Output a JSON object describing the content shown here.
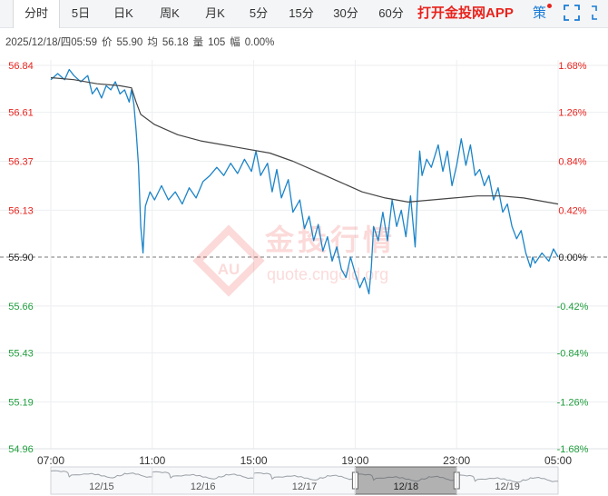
{
  "tabs": [
    {
      "label": "分时",
      "active": true
    },
    {
      "label": "5日"
    },
    {
      "label": "日K"
    },
    {
      "label": "周K"
    },
    {
      "label": "月K"
    },
    {
      "label": "5分"
    },
    {
      "label": "15分"
    },
    {
      "label": "30分"
    },
    {
      "label": "60分"
    }
  ],
  "promo": "打开金投网APP",
  "strategy": "策",
  "info": {
    "datetime": "2025/12/18/四05:59",
    "price_label": "价",
    "price": "55.90",
    "avg_label": "均",
    "avg": "56.18",
    "volume_label": "量",
    "volume": "105",
    "change_label": "幅",
    "change": "0.00%"
  },
  "watermark": {
    "brand": "金投行情",
    "logo_text": "AU",
    "site": "quote.cngold.org"
  },
  "colors": {
    "up": "#e8231d",
    "down": "#1e9e3c",
    "price_line": "#1b84c8",
    "avg_line": "#444444",
    "baseline": "#777777",
    "accent": "#1a7cd6"
  },
  "icons": [
    "fullscreen-icon",
    "expand-icon"
  ],
  "chart_data": {
    "type": "line",
    "base_price": 55.9,
    "y_ticks_left": [
      "56.84",
      "56.61",
      "56.37",
      "56.13",
      "55.90",
      "55.66",
      "55.43",
      "55.19",
      "54.96"
    ],
    "y_ticks_right": [
      "1.68%",
      "1.26%",
      "0.84%",
      "0.42%",
      "0.00%",
      "-0.42%",
      "-0.84%",
      "-1.26%",
      "-1.68%"
    ],
    "ylim": [
      54.96,
      56.84
    ],
    "x_ticks": [
      "07:00",
      "11:00",
      "15:00",
      "19:00",
      "23:00",
      "05:00"
    ],
    "x_range_hours": [
      0,
      22
    ],
    "series": [
      {
        "key": "price",
        "points": [
          [
            0,
            56.77
          ],
          [
            0.3,
            56.8
          ],
          [
            0.6,
            56.77
          ],
          [
            0.8,
            56.82
          ],
          [
            1.0,
            56.79
          ],
          [
            1.3,
            56.76
          ],
          [
            1.6,
            56.79
          ],
          [
            1.8,
            56.7
          ],
          [
            2.0,
            56.73
          ],
          [
            2.2,
            56.68
          ],
          [
            2.4,
            56.74
          ],
          [
            2.6,
            56.72
          ],
          [
            2.8,
            56.76
          ],
          [
            3.0,
            56.7
          ],
          [
            3.2,
            56.72
          ],
          [
            3.4,
            56.66
          ],
          [
            3.5,
            56.72
          ],
          [
            3.6,
            56.65
          ],
          [
            3.7,
            56.52
          ],
          [
            3.8,
            56.35
          ],
          [
            3.9,
            56.05
          ],
          [
            4.0,
            55.92
          ],
          [
            4.1,
            56.15
          ],
          [
            4.3,
            56.22
          ],
          [
            4.5,
            56.18
          ],
          [
            4.8,
            56.25
          ],
          [
            5.1,
            56.18
          ],
          [
            5.4,
            56.22
          ],
          [
            5.7,
            56.16
          ],
          [
            6.0,
            56.24
          ],
          [
            6.3,
            56.19
          ],
          [
            6.6,
            56.27
          ],
          [
            6.9,
            56.3
          ],
          [
            7.2,
            56.34
          ],
          [
            7.5,
            56.3
          ],
          [
            7.8,
            56.36
          ],
          [
            8.1,
            56.31
          ],
          [
            8.4,
            56.38
          ],
          [
            8.7,
            56.32
          ],
          [
            8.9,
            56.42
          ],
          [
            9.1,
            56.3
          ],
          [
            9.4,
            56.36
          ],
          [
            9.6,
            56.22
          ],
          [
            9.8,
            56.33
          ],
          [
            10.0,
            56.19
          ],
          [
            10.3,
            56.28
          ],
          [
            10.5,
            56.12
          ],
          [
            10.8,
            56.18
          ],
          [
            11.0,
            56.04
          ],
          [
            11.2,
            56.1
          ],
          [
            11.4,
            55.98
          ],
          [
            11.6,
            56.06
          ],
          [
            11.8,
            55.93
          ],
          [
            12.0,
            56.0
          ],
          [
            12.2,
            55.88
          ],
          [
            12.4,
            55.95
          ],
          [
            12.6,
            55.84
          ],
          [
            12.8,
            55.8
          ],
          [
            13.0,
            55.9
          ],
          [
            13.2,
            55.82
          ],
          [
            13.4,
            55.75
          ],
          [
            13.6,
            55.8
          ],
          [
            13.8,
            55.72
          ],
          [
            13.9,
            55.85
          ],
          [
            14.0,
            56.05
          ],
          [
            14.2,
            55.98
          ],
          [
            14.4,
            56.12
          ],
          [
            14.6,
            55.98
          ],
          [
            14.8,
            56.18
          ],
          [
            15.0,
            56.05
          ],
          [
            15.2,
            56.13
          ],
          [
            15.4,
            56.0
          ],
          [
            15.6,
            56.2
          ],
          [
            15.8,
            55.95
          ],
          [
            15.9,
            56.2
          ],
          [
            16.0,
            56.42
          ],
          [
            16.1,
            56.3
          ],
          [
            16.3,
            56.38
          ],
          [
            16.5,
            56.34
          ],
          [
            16.8,
            56.45
          ],
          [
            17.0,
            56.32
          ],
          [
            17.2,
            56.42
          ],
          [
            17.4,
            56.25
          ],
          [
            17.6,
            56.35
          ],
          [
            17.8,
            56.48
          ],
          [
            18.0,
            56.35
          ],
          [
            18.2,
            56.45
          ],
          [
            18.4,
            56.3
          ],
          [
            18.6,
            56.33
          ],
          [
            18.8,
            56.25
          ],
          [
            19.0,
            56.3
          ],
          [
            19.2,
            56.18
          ],
          [
            19.4,
            56.24
          ],
          [
            19.6,
            56.12
          ],
          [
            19.8,
            56.16
          ],
          [
            20.0,
            56.05
          ],
          [
            20.2,
            55.99
          ],
          [
            20.4,
            56.03
          ],
          [
            20.6,
            55.92
          ],
          [
            20.8,
            55.85
          ],
          [
            20.9,
            55.9
          ],
          [
            21.0,
            55.87
          ],
          [
            21.3,
            55.92
          ],
          [
            21.6,
            55.88
          ],
          [
            21.8,
            55.94
          ],
          [
            22.0,
            55.9
          ]
        ]
      },
      {
        "key": "average",
        "points": [
          [
            0,
            56.78
          ],
          [
            1.0,
            56.77
          ],
          [
            2.0,
            56.75
          ],
          [
            3.0,
            56.74
          ],
          [
            3.5,
            56.73
          ],
          [
            3.7,
            56.66
          ],
          [
            3.9,
            56.6
          ],
          [
            4.5,
            56.55
          ],
          [
            5.5,
            56.5
          ],
          [
            6.5,
            56.47
          ],
          [
            8.0,
            56.44
          ],
          [
            9.5,
            56.41
          ],
          [
            10.5,
            56.37
          ],
          [
            11.5,
            56.32
          ],
          [
            12.5,
            56.27
          ],
          [
            13.5,
            56.22
          ],
          [
            14.5,
            56.19
          ],
          [
            15.5,
            56.17
          ],
          [
            16.5,
            56.18
          ],
          [
            17.5,
            56.19
          ],
          [
            18.5,
            56.2
          ],
          [
            19.5,
            56.2
          ],
          [
            20.5,
            56.19
          ],
          [
            21.5,
            56.17
          ],
          [
            22.0,
            56.16
          ]
        ]
      }
    ],
    "navigator": {
      "dates": [
        "12/15",
        "12/16",
        "12/17",
        "12/18",
        "12/19"
      ],
      "selected": "12/18"
    }
  }
}
